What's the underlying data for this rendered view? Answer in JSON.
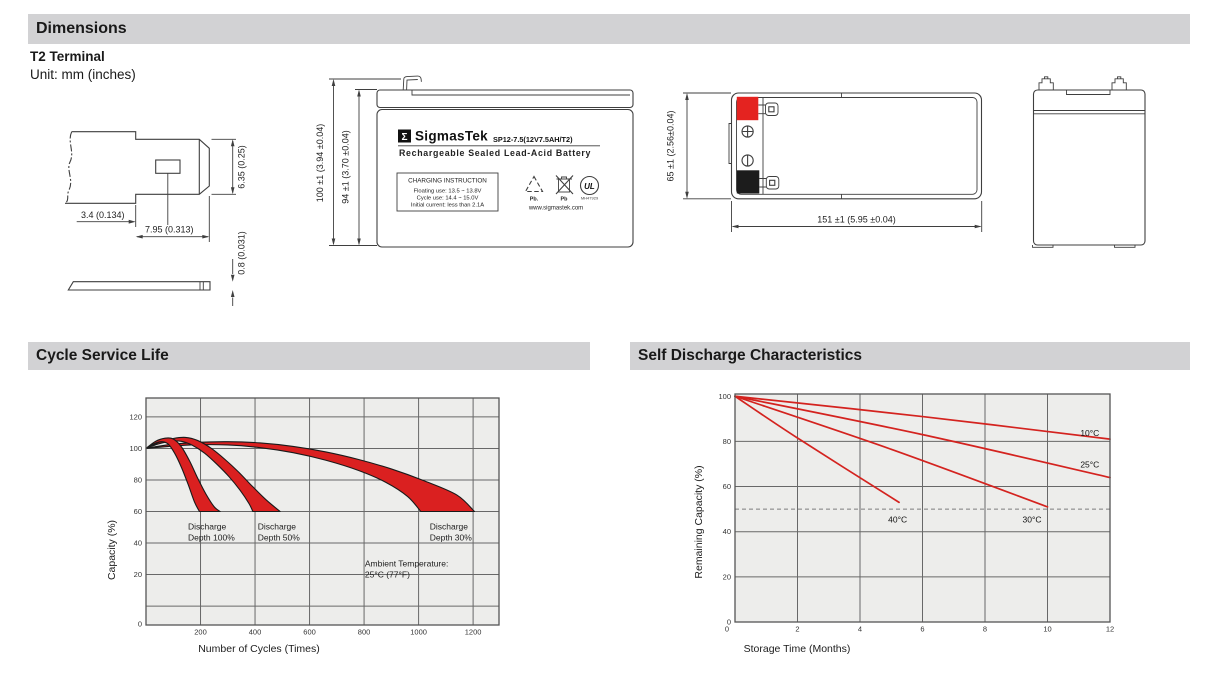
{
  "headers": {
    "dimensions": "Dimensions",
    "cycle_service_life": "Cycle Service Life",
    "self_discharge": "Self Discharge Characteristics"
  },
  "terminal_section": {
    "title": "T2 Terminal",
    "unit": "Unit: mm (inches)"
  },
  "terminal_drawing": {
    "dim_offset": "3.4 (0.134)",
    "dim_width": "7.95 (0.313)",
    "dim_height": "6.35 (0.25)",
    "dim_thickness": "0.8 (0.031)"
  },
  "front_view": {
    "dim_total_height": "100 ±1 (3.94 ±0.04)",
    "dim_case_height": "94 ±1 (3.70 ±0.04)",
    "logo_sigma": "Σ",
    "brand": "SigmasTek",
    "model": "SP12-7.5(12V7.5AH/T2)",
    "product_type": "Rechargeable Sealed Lead-Acid Battery",
    "charging_title": "CHARGING INSTRUCTION",
    "charging_lines": [
      "Floating use: 13.5 ~ 13.8V",
      "Cycle use: 14.4 ~ 15.0V",
      "Initial current: less than 2.1A"
    ],
    "recycle_label": "Pb.",
    "bin_label": "Pb",
    "ul_mark": "UL",
    "ul_code": "MH47929",
    "website": "www.sigmastek.com"
  },
  "top_view": {
    "dim_height": "65 ±1 (2.56±0.04)",
    "dim_length": "151 ±1 (5.95 ±0.04)"
  },
  "colors": {
    "section_bar": "#d2d2d4",
    "chart_bg": "#ededeb",
    "grid": "#686868",
    "frame": "#555555",
    "band_red": "#da2020",
    "band_stroke": "#1a1a1a",
    "line_red": "#d4231f",
    "terminal_red": "#e42320",
    "terminal_black": "#1c1c1c",
    "dashed": "#7d7d7d"
  },
  "chart_data": [
    {
      "name": "cycle-service-life",
      "type": "area",
      "title": "Cycle Service Life",
      "xlabel": "Number of Cycles (Times)",
      "ylabel": "Capacity (%)",
      "xlim": [
        0,
        1295
      ],
      "ylim": [
        -12,
        132
      ],
      "xticks": [
        200,
        400,
        600,
        800,
        1000,
        1200
      ],
      "yticks": [
        0,
        20,
        40,
        60,
        80,
        100,
        120
      ],
      "grid": true,
      "legend": "none",
      "bands": [
        {
          "name": "Discharge Depth 30%",
          "upper": [
            [
              0,
              100
            ],
            [
              80,
              102.3
            ],
            [
              180,
              103.8
            ],
            [
              300,
              104.3
            ],
            [
              420,
              103.5
            ],
            [
              540,
              101.3
            ],
            [
              660,
              97.8
            ],
            [
              780,
              93
            ],
            [
              900,
              87
            ],
            [
              1020,
              79.5
            ],
            [
              1140,
              70.5
            ],
            [
              1205,
              60
            ]
          ],
          "lower": [
            [
              0,
              100
            ],
            [
              80,
              101.2
            ],
            [
              180,
              102.3
            ],
            [
              300,
              102.2
            ],
            [
              420,
              100.5
            ],
            [
              540,
              97.3
            ],
            [
              660,
              92.5
            ],
            [
              780,
              86
            ],
            [
              880,
              78.5
            ],
            [
              960,
              69.5
            ],
            [
              1008,
              60
            ]
          ]
        },
        {
          "name": "Discharge Depth 50%",
          "upper": [
            [
              0,
              100
            ],
            [
              50,
              104
            ],
            [
              100,
              106.3
            ],
            [
              145,
              107
            ],
            [
              190,
              105
            ],
            [
              240,
              100
            ],
            [
              290,
              93
            ],
            [
              340,
              85
            ],
            [
              390,
              76
            ],
            [
              440,
              67.5
            ],
            [
              492,
              60
            ]
          ],
          "lower": [
            [
              0,
              100
            ],
            [
              45,
              102.8
            ],
            [
              90,
              104.6
            ],
            [
              130,
              104.5
            ],
            [
              170,
              102
            ],
            [
              215,
              97
            ],
            [
              260,
              90
            ],
            [
              305,
              82
            ],
            [
              345,
              73.5
            ],
            [
              378,
              65
            ],
            [
              392,
              60
            ]
          ]
        },
        {
          "name": "Discharge Depth 100%",
          "upper": [
            [
              0,
              100
            ],
            [
              35,
              104.5
            ],
            [
              70,
              106.5
            ],
            [
              100,
              106
            ],
            [
              130,
              101
            ],
            [
              160,
              92
            ],
            [
              190,
              81
            ],
            [
              220,
              71
            ],
            [
              250,
              63
            ],
            [
              272,
              60
            ]
          ],
          "lower": [
            [
              0,
              100
            ],
            [
              30,
              103
            ],
            [
              55,
              104.3
            ],
            [
              80,
              103
            ],
            [
              105,
              97
            ],
            [
              130,
              88
            ],
            [
              155,
              77
            ],
            [
              178,
              66
            ],
            [
              196,
              60
            ]
          ]
        }
      ],
      "annotations": [
        {
          "lines": [
            "Discharge",
            "Depth 100%"
          ],
          "x": 154,
          "y": 48.5
        },
        {
          "lines": [
            "Discharge",
            "Depth 50%"
          ],
          "x": 410,
          "y": 48.5
        },
        {
          "lines": [
            "Discharge",
            "Depth 30%"
          ],
          "x": 1041,
          "y": 48.5
        },
        {
          "lines": [
            "Ambient Temperature:",
            "25°C (77°F)"
          ],
          "x": 803,
          "y": 25
        }
      ]
    },
    {
      "name": "self-discharge",
      "type": "line",
      "title": "Self Discharge Characteristics",
      "xlabel": "Storage Time (Months)",
      "ylabel": "Remaining Capacity (%)",
      "xlim": [
        0,
        12
      ],
      "ylim": [
        0,
        101
      ],
      "xticks": [
        0,
        2,
        4,
        6,
        8,
        10,
        12
      ],
      "yticks": [
        0,
        20,
        40,
        60,
        80,
        100
      ],
      "grid_yticks": [
        20,
        40,
        60,
        80
      ],
      "grid": true,
      "legend": "inline-labels",
      "dashed_line_y": 50,
      "series": [
        {
          "name": "40°C",
          "points": [
            [
              0,
              100
            ],
            [
              2,
              81.5
            ],
            [
              5.25,
              53
            ]
          ],
          "label_at": [
            4.9,
            44
          ]
        },
        {
          "name": "30°C",
          "points": [
            [
              0,
              100
            ],
            [
              5,
              76.5
            ],
            [
              10,
              51
            ]
          ],
          "label_at": [
            9.2,
            44
          ]
        },
        {
          "name": "25°C",
          "points": [
            [
              0,
              100
            ],
            [
              6,
              83
            ],
            [
              12,
              64
            ]
          ],
          "label_at": [
            11.05,
            68.5
          ]
        },
        {
          "name": "10°C",
          "points": [
            [
              0,
              100
            ],
            [
              6,
              91
            ],
            [
              12,
              81
            ]
          ],
          "label_at": [
            11.05,
            82.5
          ]
        }
      ]
    }
  ]
}
